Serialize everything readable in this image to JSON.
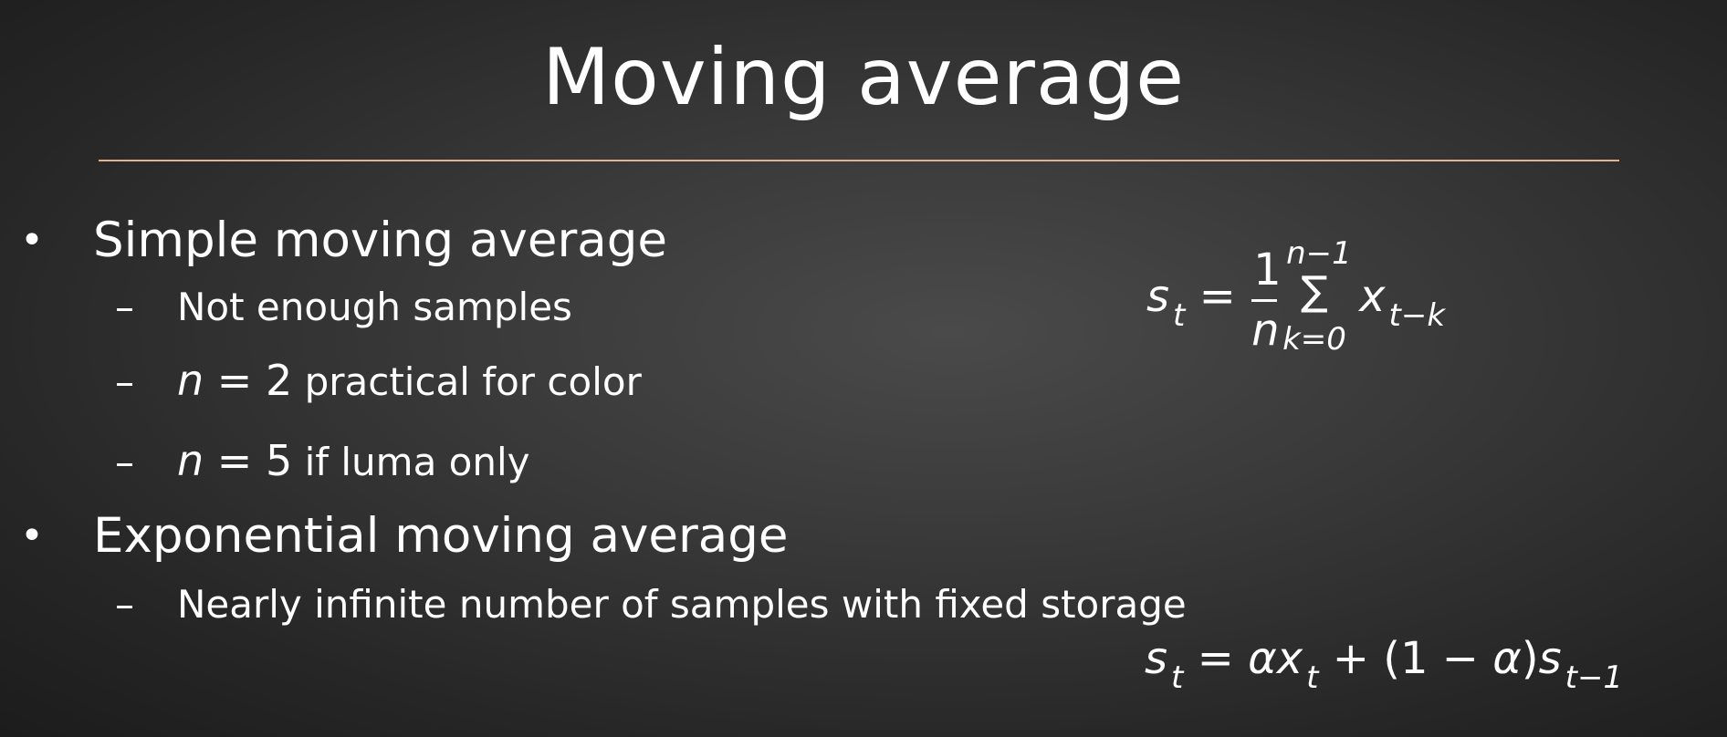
{
  "slide": {
    "title": "Moving average",
    "accent_color": "#e3b28a",
    "bullets": [
      {
        "label": "Simple moving average",
        "subitems": [
          {
            "text": "Not enough samples"
          },
          {
            "var": "n",
            "rel": " = 2",
            "text": " practical for color"
          },
          {
            "var": "n",
            "rel": " = 5",
            "text": " if luma only"
          }
        ]
      },
      {
        "label": "Exponential moving average",
        "subitems": [
          {
            "text": "Nearly infinite number of samples with fixed storage"
          }
        ]
      }
    ],
    "bullet_glyph": "•",
    "dash_glyph": "–",
    "equations": {
      "sma": {
        "lhs": "s",
        "lhs_sub": "t",
        "eq": " = ",
        "frac_num": "1",
        "frac_den": "n",
        "sum_top": "n−1",
        "sum_sigma": "∑",
        "sum_bottom": "k=0",
        "term": "x",
        "term_sub": "t−k"
      },
      "ema": {
        "lhs": "s",
        "lhs_sub": "t",
        "eq": " = ",
        "alpha1": "α",
        "x": "x",
        "x_sub": "t",
        "plus": " + (1 − ",
        "alpha2": "α",
        "close": ")",
        "s": "s",
        "s_sub": "t−1"
      }
    }
  }
}
